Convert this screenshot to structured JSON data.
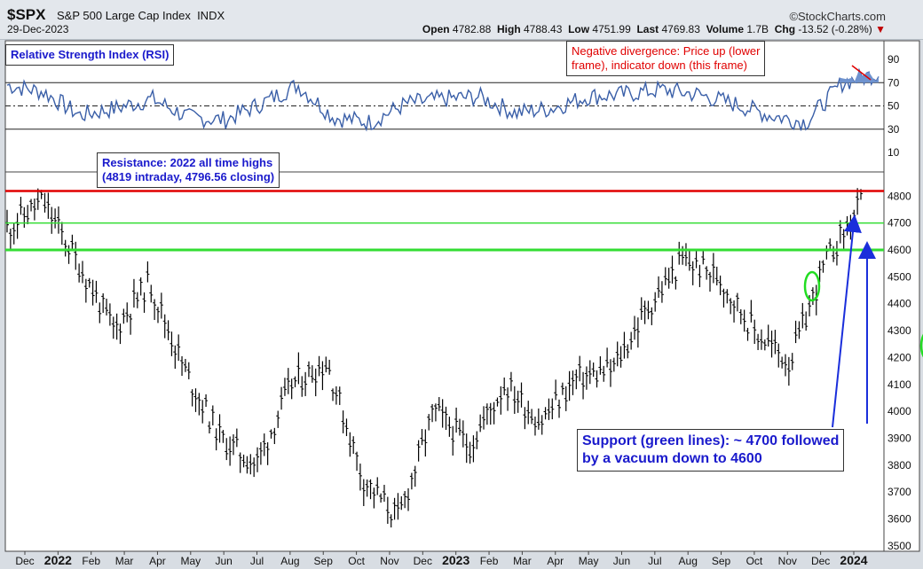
{
  "header": {
    "ticker": "$SPX",
    "name": "S&P 500 Large Cap Index",
    "exchange": "INDX",
    "date": "29-Dec-2023",
    "brand": "©StockCharts.com",
    "open_label": "Open",
    "open": "4782.88",
    "high_label": "High",
    "high": "4788.43",
    "low_label": "Low",
    "low": "4751.99",
    "last_label": "Last",
    "last": "4769.83",
    "volume_label": "Volume",
    "volume": "1.7B",
    "chg_label": "Chg",
    "chg": "-13.52 (-0.28%)",
    "chg_arrow": "▼"
  },
  "annotations": {
    "rsi_title": "Relative Strength Index (RSI)",
    "divergence_line1": "Negative divergence: Price up (lower",
    "divergence_line2": "frame), indicator down (this frame)",
    "resistance_line1": "Resistance: 2022 all time highs",
    "resistance_line2": "(4819 intraday, 4796.56 closing)",
    "support_line1": "Support (green lines): ~ 4700 followed",
    "support_line2": "by a vacuum down to 4600"
  },
  "colors": {
    "resistance": "#e00000",
    "support": "#33dd33",
    "rsi_line": "#3a5fa8",
    "arrow": "#1a2edb",
    "annotation_blue": "#1a1acc",
    "annotation_red": "#e00000"
  },
  "chart_data": [
    {
      "type": "line",
      "title": "Relative Strength Index (RSI)",
      "yticks": [
        10,
        30,
        50,
        70,
        90
      ],
      "ylim": [
        0,
        100
      ],
      "reference_levels": [
        30,
        50,
        70
      ],
      "x": [
        "Dec 2021",
        "Jan 2022",
        "Feb",
        "Mar",
        "Apr",
        "May",
        "Jun",
        "Jul",
        "Aug",
        "Sep",
        "Oct",
        "Nov",
        "Dec",
        "Jan 2023",
        "Feb",
        "Mar",
        "Apr",
        "May",
        "Jun",
        "Jul",
        "Aug",
        "Sep",
        "Oct",
        "Nov",
        "Dec"
      ],
      "series": [
        {
          "values": [
            68,
            62,
            42,
            48,
            56,
            40,
            38,
            52,
            68,
            40,
            36,
            52,
            56,
            58,
            44,
            48,
            58,
            60,
            64,
            60,
            52,
            42,
            36,
            70,
            78
          ]
        }
      ],
      "annotation": "Negative divergence: Price up (lower frame), indicator down (this frame)"
    },
    {
      "type": "bar",
      "style": "ohlc",
      "yticks": [
        3500,
        3600,
        3700,
        3800,
        3900,
        4000,
        4100,
        4200,
        4300,
        4400,
        4500,
        4600,
        4700,
        4800
      ],
      "ylim": [
        3480,
        4890
      ],
      "x_tick_labels": [
        "Dec",
        "2022",
        "Feb",
        "Mar",
        "Apr",
        "May",
        "Jun",
        "Jul",
        "Aug",
        "Sep",
        "Oct",
        "Nov",
        "Dec",
        "2023",
        "Feb",
        "Mar",
        "Apr",
        "May",
        "Jun",
        "Jul",
        "Aug",
        "Sep",
        "Oct",
        "Nov",
        "Dec",
        "2024"
      ],
      "series": [
        {
          "values": [
            4680,
            4780,
            4550,
            4300,
            4480,
            4150,
            3900,
            3800,
            4100,
            4180,
            3750,
            3600,
            4000,
            3870,
            4100,
            3960,
            4120,
            4150,
            4380,
            4560,
            4500,
            4300,
            4180,
            4550,
            4770
          ]
        }
      ],
      "lines": [
        {
          "level": 4819,
          "label": "Resistance: 2022 all time highs (4819 intraday, 4796.56 closing)"
        },
        {
          "level": 4700,
          "label": "Support"
        },
        {
          "level": 4600,
          "label": "Support"
        }
      ],
      "annotation": "Support (green lines): ~ 4700 followed by a vacuum down to 4600"
    }
  ]
}
